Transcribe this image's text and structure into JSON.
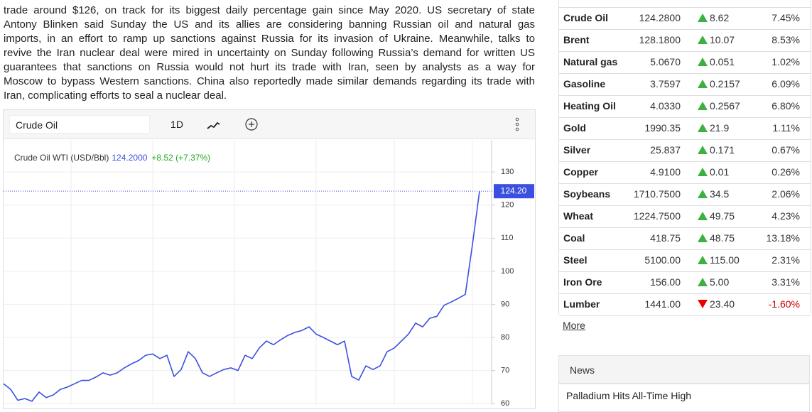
{
  "article": {
    "lines": [
      "trade around $126, on track for its biggest daily percentage gain since May 2020. US secretary of state",
      "Antony Blinken said Sunday the US and its allies are considering banning Russian oil and natural gas",
      "imports, in an effort to ramp up sanctions against Russia for its invasion of Ukraine. Meanwhile, talks to",
      "revive the Iran nuclear deal were mired in uncertainty on Sunday following Russia’s demand for written US",
      "guarantees that sanctions on Russia would not hurt its trade with Iran, seen by analysts as a way for",
      "Moscow to bypass Western sanctions. China also reportedly made similar demands regarding its trade with",
      "Iran, complicating efforts to seal a nuclear deal."
    ]
  },
  "widget": {
    "search": "Crude Oil",
    "interval": "1D"
  },
  "chart_data": {
    "type": "line",
    "series": [
      {
        "name": "Crude Oil WTI (USD/Bbl)",
        "color": "#3b4fe0",
        "values": [
          66,
          64.3,
          61,
          61.5,
          60.7,
          63.5,
          61.8,
          62.6,
          64.3,
          65,
          66,
          67,
          67,
          68,
          69.3,
          68.6,
          69.3,
          70.8,
          72,
          73,
          74.6,
          75,
          73.6,
          74.6,
          68.2,
          70.3,
          75.7,
          73.6,
          69.3,
          68.2,
          69.3,
          70.3,
          70.8,
          70,
          74.6,
          73.6,
          76.8,
          78.9,
          77.8,
          79.3,
          80.6,
          81.5,
          82.1,
          83.2,
          81,
          80,
          78.9,
          77.8,
          78.9,
          68.2,
          67.1,
          71.4,
          70.3,
          71.4,
          75.7,
          76.8,
          78.9,
          81,
          84.3,
          83.2,
          85.8,
          86.4,
          89.7,
          90.7,
          91.8,
          93,
          108,
          124.2
        ]
      }
    ],
    "last_price": {
      "value": 124.2,
      "label": "124.2000"
    },
    "change_label": "+8.52 (+7.37%)",
    "change_color": "#22a822",
    "price_tag": {
      "value": 124.2,
      "label": "124.20"
    },
    "ylim": [
      59.6,
      139.7
    ],
    "yticks": [
      60,
      70,
      80,
      90,
      100,
      110,
      120,
      130
    ],
    "grid": true
  },
  "table": {
    "rows": [
      [
        "Crude Oil",
        "124.2800",
        "8.62",
        "7.45%"
      ],
      [
        "Brent",
        "128.1800",
        "10.07",
        "8.53%"
      ],
      [
        "Natural gas",
        "5.0670",
        "0.051",
        "1.02%"
      ],
      [
        "Gasoline",
        "3.7597",
        "0.2157",
        "6.09%"
      ],
      [
        "Heating Oil",
        "4.0330",
        "0.2567",
        "6.80%"
      ],
      [
        "Gold",
        "1990.35",
        "21.9",
        "1.11%"
      ],
      [
        "Silver",
        "25.837",
        "0.171",
        "0.67%"
      ],
      [
        "Copper",
        "4.9100",
        "0.01",
        "0.26%"
      ],
      [
        "Soybeans",
        "1710.7500",
        "34.5",
        "2.06%"
      ],
      [
        "Wheat",
        "1224.7500",
        "49.75",
        "4.23%"
      ],
      [
        "Coal",
        "418.75",
        "48.75",
        "13.18%"
      ],
      [
        "Steel",
        "5100.00",
        "115.00",
        "2.31%"
      ],
      [
        "Iron Ore",
        "156.00",
        "5.00",
        "3.31%"
      ],
      [
        "Lumber",
        "1441.00",
        "23.40",
        "-1.60%"
      ]
    ],
    "more": "More"
  },
  "news": {
    "title": "News",
    "items": [
      "Palladium Hits All-Time High"
    ]
  }
}
